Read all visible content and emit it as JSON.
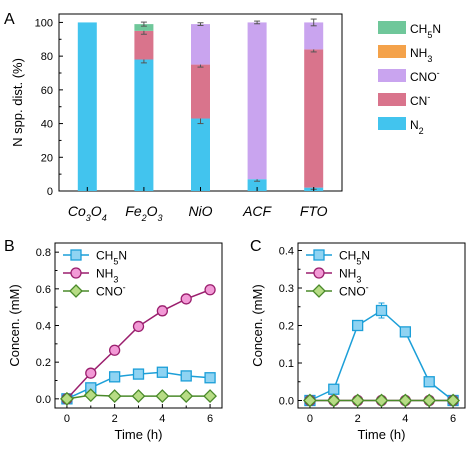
{
  "chart_data": [
    {
      "panel": "A",
      "type": "bar",
      "stacked": true,
      "ylabel": "N spp. dist. (%)",
      "ylim": [
        0,
        105
      ],
      "yticks": [
        0,
        20,
        40,
        60,
        80,
        100
      ],
      "categories": [
        {
          "base": "Co",
          "s1": "3",
          "mid": "O",
          "s2": "4"
        },
        {
          "base": "Fe",
          "s1": "2",
          "mid": "O",
          "s2": "3"
        },
        {
          "base": "NiO",
          "s1": "",
          "mid": "",
          "s2": ""
        },
        {
          "base": "ACF",
          "s1": "",
          "mid": "",
          "s2": ""
        },
        {
          "base": "FTO",
          "s1": "",
          "mid": "",
          "s2": ""
        }
      ],
      "series": [
        {
          "name": "N",
          "sub": "2",
          "sup": "",
          "color": "#42c4ee",
          "values": [
            100,
            78,
            43,
            7,
            2
          ],
          "errors": [
            0,
            2,
            3,
            1.2,
            1
          ]
        },
        {
          "name": "CN",
          "sub": "",
          "sup": "-",
          "color": "#d9748c",
          "values": [
            0,
            17,
            32,
            0,
            82
          ],
          "errors": [
            0,
            2,
            1.5,
            0,
            1.5
          ]
        },
        {
          "name": "CNO",
          "sub": "",
          "sup": "-",
          "color": "#c9a4ef",
          "values": [
            0,
            0,
            24,
            93,
            16
          ],
          "errors": [
            0,
            0,
            0.8,
            0.8,
            2
          ]
        },
        {
          "name": "NH",
          "sub": "3",
          "sup": "",
          "color": "#f4a24a",
          "values": [
            0,
            0,
            0,
            0,
            0
          ],
          "errors": [
            0,
            0,
            0,
            0,
            0
          ]
        },
        {
          "name": "CH",
          "sub": "5",
          "sup": "",
          "suffix": "N",
          "color": "#6fc79a",
          "values": [
            0,
            4,
            0,
            0,
            0
          ],
          "errors": [
            0,
            1.2,
            0,
            0,
            0
          ]
        }
      ],
      "legend_position": "right"
    },
    {
      "panel": "B",
      "type": "line",
      "xlabel": "Time (h)",
      "ylabel": "Concen. (mM)",
      "xlim": [
        -0.5,
        6.5
      ],
      "ylim": [
        -0.05,
        0.85
      ],
      "xticks": [
        0,
        2,
        4,
        6
      ],
      "yticks": [
        0.0,
        0.2,
        0.4,
        0.6,
        0.8
      ],
      "x": [
        0,
        1,
        2,
        3,
        4,
        5,
        6
      ],
      "series": [
        {
          "name": "CH",
          "sub": "5",
          "sup": "",
          "suffix": "N",
          "color": "#1c9fd8",
          "fill": "#8fd3f2",
          "marker": "square",
          "values": [
            0.0,
            0.06,
            0.12,
            0.135,
            0.145,
            0.125,
            0.115
          ],
          "errors": [
            0,
            0.01,
            0.02,
            0.02,
            0.02,
            0.015,
            0.015
          ]
        },
        {
          "name": "NH",
          "sub": "3",
          "sup": "",
          "color": "#9b1f6e",
          "fill": "#f29ad6",
          "marker": "circle",
          "values": [
            0.0,
            0.14,
            0.265,
            0.395,
            0.48,
            0.545,
            0.595
          ],
          "errors": [
            0,
            0.01,
            0.01,
            0.015,
            0.025,
            0.015,
            0.01
          ]
        },
        {
          "name": "CNO",
          "sub": "",
          "sup": "-",
          "color": "#4a8a2a",
          "fill": "#b7dc85",
          "marker": "diamond",
          "values": [
            0.0,
            0.02,
            0.015,
            0.015,
            0.015,
            0.015,
            0.015
          ],
          "errors": [
            0,
            0,
            0,
            0,
            0,
            0,
            0
          ]
        }
      ],
      "legend_position": "top-left"
    },
    {
      "panel": "C",
      "type": "line",
      "xlabel": "Time (h)",
      "ylabel": "Concen. (mM)",
      "xlim": [
        -0.5,
        6.5
      ],
      "ylim": [
        -0.02,
        0.42
      ],
      "xticks": [
        0,
        2,
        4,
        6
      ],
      "yticks": [
        0.0,
        0.1,
        0.2,
        0.3,
        0.4
      ],
      "x": [
        0,
        1,
        2,
        3,
        4,
        5,
        6
      ],
      "series": [
        {
          "name": "CH",
          "sub": "5",
          "sup": "",
          "suffix": "N",
          "color": "#1c9fd8",
          "fill": "#8fd3f2",
          "marker": "square",
          "values": [
            0.0,
            0.03,
            0.2,
            0.24,
            0.183,
            0.05,
            0.0
          ],
          "errors": [
            0,
            0,
            0.012,
            0.02,
            0.006,
            0,
            0
          ]
        },
        {
          "name": "NH",
          "sub": "3",
          "sup": "",
          "color": "#9b1f6e",
          "fill": "#f29ad6",
          "marker": "circle",
          "values": [
            0.0,
            0.0,
            0.0,
            0.0,
            0.0,
            0.0,
            0.0
          ],
          "errors": [
            0,
            0,
            0,
            0,
            0,
            0,
            0
          ]
        },
        {
          "name": "CNO",
          "sub": "",
          "sup": "-",
          "color": "#4a8a2a",
          "fill": "#b7dc85",
          "marker": "diamond",
          "values": [
            0.0,
            0.0,
            0.0,
            0.0,
            0.0,
            0.0,
            0.0
          ],
          "errors": [
            0,
            0,
            0,
            0,
            0,
            0,
            0
          ]
        }
      ],
      "legend_position": "top-left"
    }
  ]
}
